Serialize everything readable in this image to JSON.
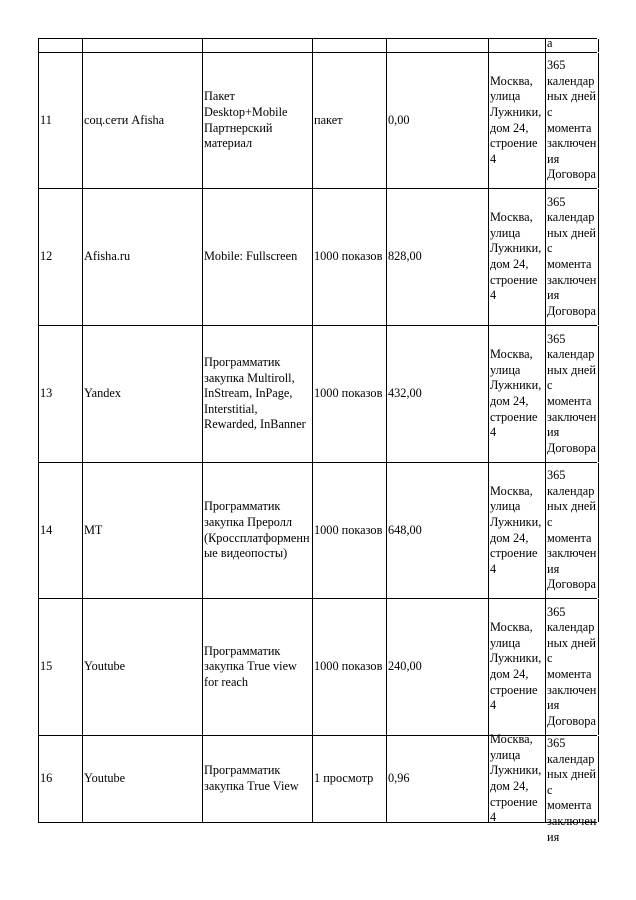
{
  "table": {
    "top_row_overflow": "а",
    "rows": [
      {
        "num": "11",
        "name": "соц.сети Afisha",
        "description": "Пакет Desktop+Mobile Партнерский материал",
        "unit": "пакет",
        "price": "0,00",
        "address": "Москва, улица Лужники, дом 24, строение 4",
        "term": "365 календарных дней с момента заключения Договора"
      },
      {
        "num": "12",
        "name": "Afisha.ru",
        "description": "Mobile: Fullscreen",
        "unit": "1000 показов",
        "price": "828,00",
        "address": "Москва, улица Лужники, дом 24, строение 4",
        "term": "365 календарных дней с момента заключения Договора"
      },
      {
        "num": "13",
        "name": "Yandex",
        "description": "Программатик закупка Multiroll, InStream, InPage, Interstitial, Rewarded, InBanner",
        "unit": "1000 показов",
        "price": "432,00",
        "address": "Москва, улица Лужники, дом 24, строение 4",
        "term": "365 календарных дней с момента заключения Договора"
      },
      {
        "num": "14",
        "name": "MT",
        "description": "Программатик закупка Преролл (Кроссплатформенные видеопосты)",
        "unit": "1000 показов",
        "price": "648,00",
        "address": "Москва, улица Лужники, дом 24, строение 4",
        "term": "365 календарных дней с момента заключения Договора"
      },
      {
        "num": "15",
        "name": "Youtube",
        "description": "Программатик закупка True view for reach",
        "unit": "1000 показов",
        "price": "240,00",
        "address": "Москва, улица Лужники, дом 24, строение 4",
        "term": "365 календарных дней с момента заключения Договора"
      },
      {
        "num": "16",
        "name": "Youtube",
        "description": "Программатик закупка True View",
        "unit": "1 просмотр",
        "price": "0,96",
        "address": "Москва, улица Лужники, дом 24, строение 4",
        "term": "365 календарных дней с момента заключения"
      }
    ]
  }
}
